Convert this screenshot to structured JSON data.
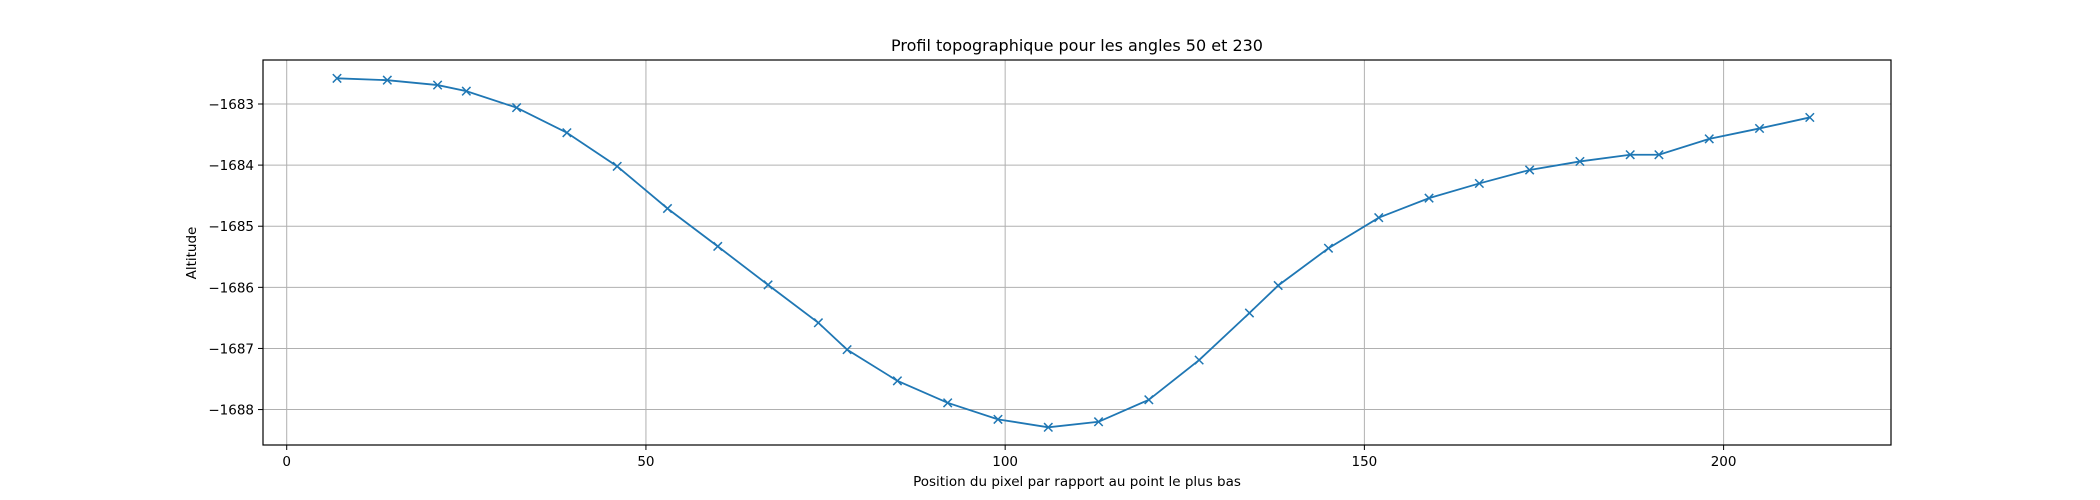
{
  "chart_data": {
    "type": "line",
    "title": "Profil topographique pour les angles 50 et 230",
    "xlabel": "Position du pixel par rapport au point le plus bas",
    "ylabel": "Altitude",
    "xlim": [
      -3.3,
      223.3
    ],
    "ylim": [
      -1688.58,
      -1682.28
    ],
    "grid": true,
    "marker": "x",
    "color": "#1f77b4",
    "xticks": [
      0,
      50,
      100,
      150,
      200
    ],
    "yticks": [
      -1683,
      -1684,
      -1685,
      -1686,
      -1687,
      -1688
    ],
    "xtick_labels": [
      "0",
      "50",
      "100",
      "150",
      "200"
    ],
    "ytick_labels": [
      "−1683",
      "−1684",
      "−1685",
      "−1686",
      "−1687",
      "−1688"
    ],
    "series": [
      {
        "x": [
          7,
          14,
          21,
          25,
          32,
          39,
          46,
          53,
          60,
          67,
          74,
          78,
          85,
          92,
          99,
          106,
          113,
          120,
          127,
          134,
          138,
          145,
          152,
          159,
          166,
          173,
          180,
          187,
          191,
          198,
          205,
          212
        ],
        "y": [
          -1682.58,
          -1682.61,
          -1682.69,
          -1682.79,
          -1683.06,
          -1683.47,
          -1684.02,
          -1684.71,
          -1685.33,
          -1685.96,
          -1686.58,
          -1687.02,
          -1687.53,
          -1687.89,
          -1688.16,
          -1688.29,
          -1688.2,
          -1687.84,
          -1687.19,
          -1686.42,
          -1685.97,
          -1685.36,
          -1684.86,
          -1684.54,
          -1684.3,
          -1684.08,
          -1683.94,
          -1683.83,
          -1683.83,
          -1683.57,
          -1683.4,
          -1683.22
        ]
      }
    ]
  }
}
